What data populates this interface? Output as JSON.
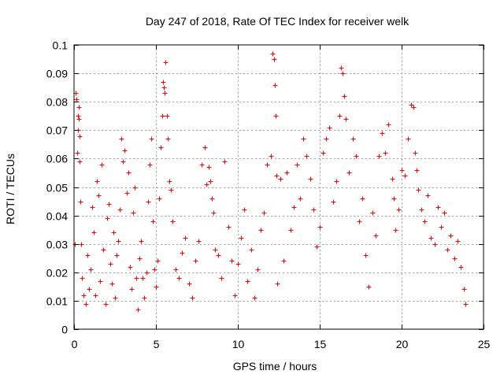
{
  "chart_data": {
    "type": "scatter",
    "title": "Day 247 of 2018, Rate Of TEC Index for receiver welk",
    "xlabel": "GPS time / hours",
    "ylabel": "ROTI / TECUs",
    "xlim": [
      0,
      25
    ],
    "ylim": [
      0,
      0.1
    ],
    "x_ticks": [
      0,
      5,
      10,
      15,
      20,
      25
    ],
    "y_ticks": [
      0,
      0.01,
      0.02,
      0.03,
      0.04,
      0.05,
      0.06,
      0.07,
      0.08,
      0.09,
      0.1
    ],
    "x_tick_labels": [
      "0",
      "5",
      "10",
      "15",
      "20",
      "25"
    ],
    "y_tick_labels": [
      "0",
      "0.01",
      "0.02",
      "0.03",
      "0.04",
      "0.05",
      "0.06",
      "0.07",
      "0.08",
      "0.09",
      "0.1"
    ],
    "grid": true,
    "marker": "plus",
    "series": [
      {
        "name": "ROTI",
        "color": "#ff0000",
        "x": [
          0.05,
          0.1,
          0.15,
          0.2,
          0.22,
          0.25,
          0.28,
          0.3,
          0.32,
          0.35,
          0.4,
          0.45,
          0.5,
          0.6,
          0.7,
          0.8,
          0.9,
          1.0,
          1.1,
          1.2,
          1.3,
          1.4,
          1.5,
          1.6,
          1.7,
          1.8,
          1.9,
          2.0,
          2.1,
          2.2,
          2.3,
          2.4,
          2.5,
          2.6,
          2.7,
          2.8,
          2.9,
          3.0,
          3.1,
          3.2,
          3.3,
          3.4,
          3.5,
          3.6,
          3.7,
          3.8,
          3.9,
          4.0,
          4.1,
          4.2,
          4.3,
          4.4,
          4.5,
          4.6,
          4.7,
          4.8,
          4.9,
          5.0,
          5.1,
          5.2,
          5.3,
          5.4,
          5.45,
          5.5,
          5.55,
          5.6,
          5.65,
          5.7,
          5.8,
          5.9,
          6.0,
          6.2,
          6.4,
          6.6,
          6.8,
          7.0,
          7.2,
          7.4,
          7.6,
          7.8,
          8.0,
          8.1,
          8.2,
          8.3,
          8.4,
          8.5,
          8.6,
          8.8,
          9.0,
          9.2,
          9.4,
          9.6,
          9.8,
          10.0,
          10.2,
          10.4,
          10.6,
          10.8,
          11.0,
          11.2,
          11.4,
          11.6,
          11.8,
          12.0,
          12.1,
          12.2,
          12.25,
          12.3,
          12.35,
          12.4,
          12.6,
          12.8,
          13.0,
          13.2,
          13.4,
          13.6,
          13.8,
          14.0,
          14.2,
          14.4,
          14.6,
          14.8,
          15.0,
          15.2,
          15.4,
          15.6,
          15.8,
          16.0,
          16.2,
          16.3,
          16.4,
          16.5,
          16.6,
          16.8,
          17.0,
          17.2,
          17.4,
          17.6,
          17.8,
          18.0,
          18.2,
          18.4,
          18.6,
          18.8,
          19.0,
          19.2,
          19.4,
          19.5,
          19.6,
          19.8,
          20.0,
          20.2,
          20.4,
          20.6,
          20.7,
          20.8,
          20.9,
          21.0,
          21.2,
          21.4,
          21.6,
          21.8,
          22.0,
          22.2,
          22.4,
          22.6,
          22.8,
          23.0,
          23.2,
          23.4,
          23.6,
          23.8,
          23.9
        ],
        "y": [
          0.03,
          0.083,
          0.081,
          0.062,
          0.075,
          0.07,
          0.078,
          0.074,
          0.068,
          0.059,
          0.045,
          0.03,
          0.018,
          0.012,
          0.009,
          0.026,
          0.014,
          0.021,
          0.043,
          0.034,
          0.012,
          0.052,
          0.047,
          0.017,
          0.058,
          0.028,
          0.009,
          0.039,
          0.044,
          0.023,
          0.016,
          0.034,
          0.011,
          0.026,
          0.031,
          0.042,
          0.067,
          0.059,
          0.063,
          0.048,
          0.055,
          0.022,
          0.014,
          0.041,
          0.05,
          0.018,
          0.007,
          0.025,
          0.031,
          0.018,
          0.011,
          0.02,
          0.045,
          0.058,
          0.067,
          0.038,
          0.021,
          0.015,
          0.024,
          0.046,
          0.064,
          0.075,
          0.087,
          0.085,
          0.083,
          0.094,
          0.075,
          0.067,
          0.052,
          0.049,
          0.038,
          0.021,
          0.018,
          0.027,
          0.032,
          0.016,
          0.011,
          0.024,
          0.031,
          0.058,
          0.064,
          0.051,
          0.057,
          0.052,
          0.046,
          0.041,
          0.028,
          0.026,
          0.018,
          0.059,
          0.036,
          0.024,
          0.012,
          0.023,
          0.032,
          0.042,
          0.017,
          0.028,
          0.011,
          0.021,
          0.035,
          0.041,
          0.058,
          0.061,
          0.097,
          0.095,
          0.086,
          0.075,
          0.054,
          0.016,
          0.053,
          0.024,
          0.055,
          0.035,
          0.043,
          0.058,
          0.046,
          0.067,
          0.061,
          0.053,
          0.042,
          0.029,
          0.036,
          0.062,
          0.067,
          0.071,
          0.045,
          0.052,
          0.075,
          0.092,
          0.09,
          0.082,
          0.074,
          0.055,
          0.067,
          0.061,
          0.038,
          0.046,
          0.026,
          0.015,
          0.041,
          0.033,
          0.061,
          0.069,
          0.062,
          0.072,
          0.053,
          0.046,
          0.035,
          0.042,
          0.056,
          0.054,
          0.067,
          0.079,
          0.078,
          0.062,
          0.056,
          0.049,
          0.042,
          0.038,
          0.047,
          0.032,
          0.03,
          0.043,
          0.036,
          0.041,
          0.028,
          0.033,
          0.025,
          0.031,
          0.022,
          0.014,
          0.009
        ]
      }
    ]
  }
}
